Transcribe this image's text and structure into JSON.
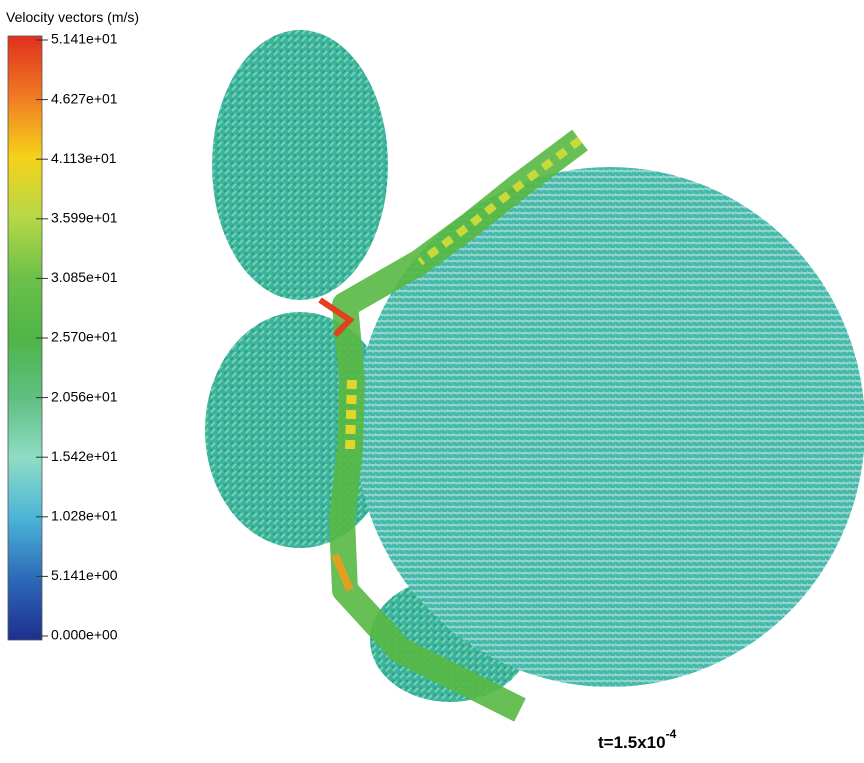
{
  "legend": {
    "title": "Velocity vectors (m/s)",
    "ticks": [
      "5.141e+01",
      "4.627e+01",
      "4.113e+01",
      "3.599e+01",
      "3.085e+01",
      "2.570e+01",
      "2.056e+01",
      "1.542e+01",
      "1.028e+01",
      "5.141e+00",
      "0.000e+00"
    ]
  },
  "time_label": {
    "base": "t=1.5x10",
    "exponent": "-4"
  }
}
